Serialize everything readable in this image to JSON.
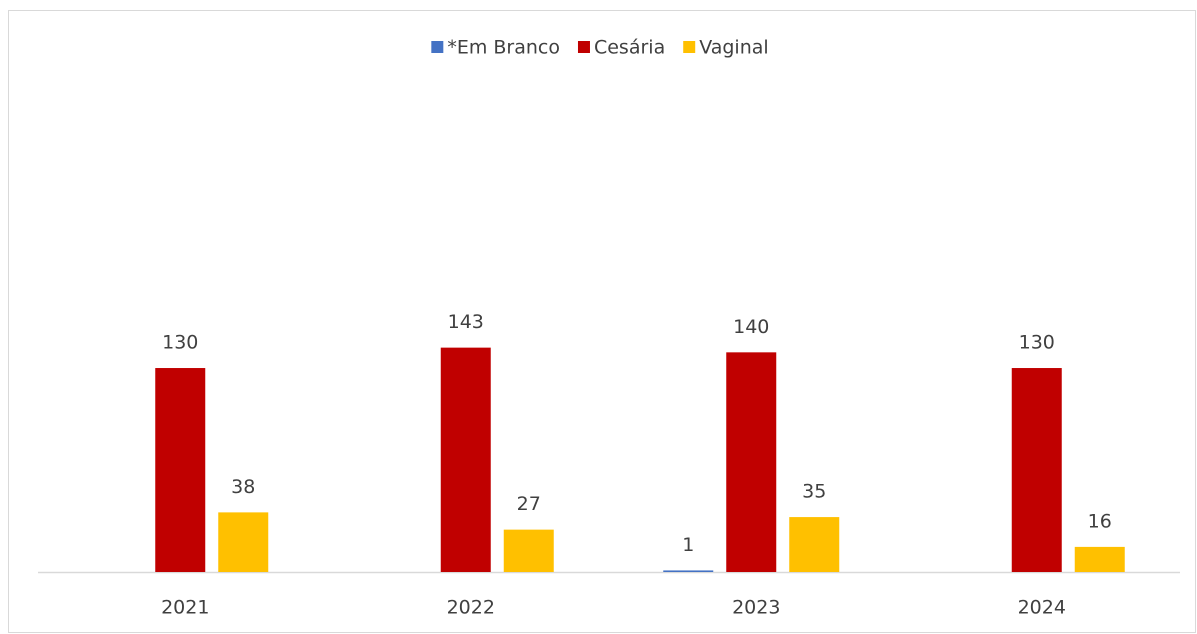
{
  "chart_data": {
    "type": "bar",
    "categories": [
      "2021",
      "2022",
      "2023",
      "2024"
    ],
    "series": [
      {
        "name": "*Em Branco",
        "color": "#4472c4",
        "values": [
          null,
          null,
          1,
          null
        ]
      },
      {
        "name": "Cesária",
        "color": "#c00000",
        "values": [
          130,
          143,
          140,
          130
        ]
      },
      {
        "name": "Vaginal",
        "color": "#ffc000",
        "values": [
          38,
          27,
          35,
          16
        ]
      }
    ],
    "legend": "top"
  }
}
